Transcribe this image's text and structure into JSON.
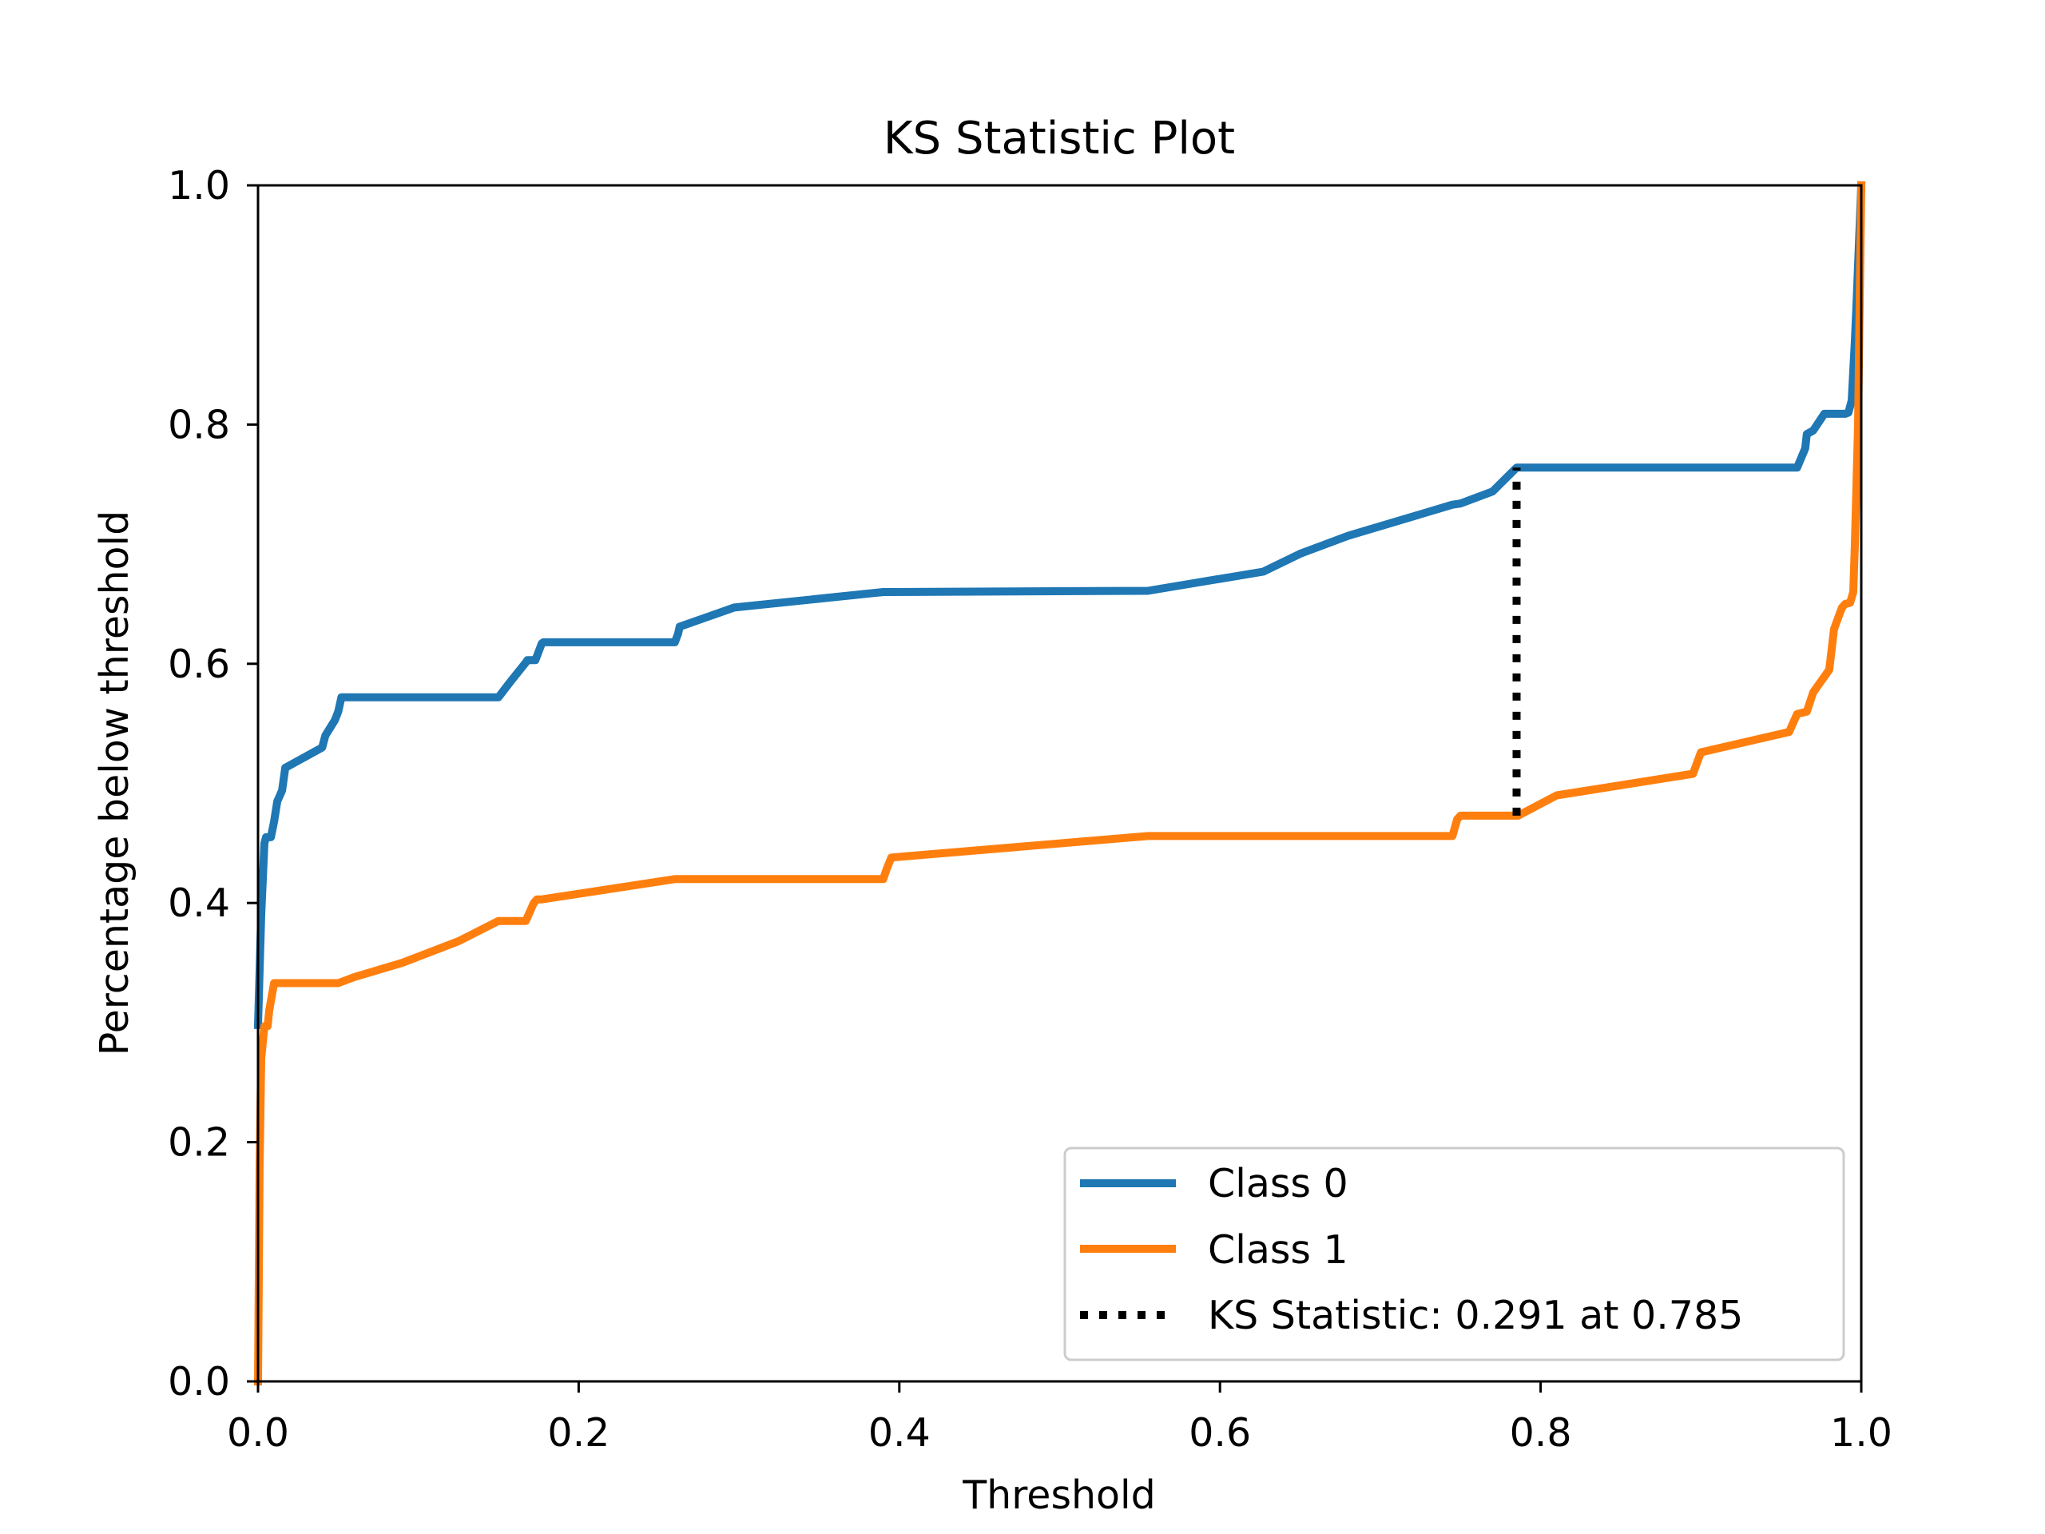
{
  "chart_data": {
    "type": "line",
    "title": "KS Statistic Plot",
    "xlabel": "Threshold",
    "ylabel": "Percentage below threshold",
    "xlim": [
      0.0,
      1.0
    ],
    "ylim": [
      0.0,
      1.0
    ],
    "xticks": [
      "0.0",
      "0.2",
      "0.4",
      "0.6",
      "0.8",
      "1.0"
    ],
    "yticks": [
      "0.0",
      "0.2",
      "0.4",
      "0.6",
      "0.8",
      "1.0"
    ],
    "grid": false,
    "legend_position": "lower-right",
    "series": [
      {
        "name": "Class 0",
        "color": "#1f77b4",
        "x": [
          0.0,
          0.002,
          0.004,
          0.005,
          0.008,
          0.01,
          0.012,
          0.015,
          0.017,
          0.04,
          0.042,
          0.048,
          0.05,
          0.052,
          0.15,
          0.158,
          0.167,
          0.168,
          0.173,
          0.177,
          0.178,
          0.26,
          0.262,
          0.263,
          0.297,
          0.39,
          0.555,
          0.627,
          0.65,
          0.68,
          0.72,
          0.745,
          0.75,
          0.77,
          0.785,
          0.96,
          0.965,
          0.966,
          0.97,
          0.977,
          0.99,
          0.992,
          0.994,
          0.995,
          0.996,
          0.997,
          1.0
        ],
        "y": [
          0.298,
          0.39,
          0.45,
          0.455,
          0.455,
          0.468,
          0.485,
          0.494,
          0.513,
          0.53,
          0.54,
          0.553,
          0.56,
          0.572,
          0.572,
          0.586,
          0.601,
          0.603,
          0.603,
          0.617,
          0.618,
          0.618,
          0.625,
          0.631,
          0.647,
          0.66,
          0.661,
          0.677,
          0.692,
          0.707,
          0.723,
          0.733,
          0.734,
          0.744,
          0.764,
          0.764,
          0.78,
          0.792,
          0.795,
          0.809,
          0.809,
          0.81,
          0.82,
          0.845,
          0.87,
          0.9,
          1.0
        ]
      },
      {
        "name": "Class 1",
        "color": "#ff7f0e",
        "x": [
          0.0,
          0.001,
          0.002,
          0.004,
          0.006,
          0.007,
          0.01,
          0.012,
          0.05,
          0.06,
          0.09,
          0.125,
          0.15,
          0.167,
          0.172,
          0.174,
          0.177,
          0.26,
          0.39,
          0.392,
          0.395,
          0.555,
          0.745,
          0.748,
          0.75,
          0.786,
          0.81,
          0.895,
          0.9,
          0.955,
          0.96,
          0.966,
          0.97,
          0.98,
          0.983,
          0.986,
          0.988,
          0.99,
          0.993,
          0.995,
          0.996,
          0.997,
          0.998,
          0.999,
          1.0
        ],
        "y": [
          0.0,
          0.18,
          0.27,
          0.297,
          0.297,
          0.31,
          0.333,
          0.333,
          0.333,
          0.338,
          0.35,
          0.368,
          0.385,
          0.385,
          0.4,
          0.403,
          0.403,
          0.42,
          0.42,
          0.428,
          0.438,
          0.456,
          0.456,
          0.47,
          0.473,
          0.473,
          0.49,
          0.508,
          0.526,
          0.543,
          0.558,
          0.56,
          0.576,
          0.595,
          0.629,
          0.64,
          0.647,
          0.65,
          0.651,
          0.66,
          0.7,
          0.75,
          0.8,
          0.9,
          1.0
        ]
      },
      {
        "name": "KS Statistic: 0.291 at 0.785",
        "color": "#000000",
        "style": "dotted",
        "x": [
          0.785,
          0.785
        ],
        "y": [
          0.473,
          0.764
        ]
      }
    ]
  }
}
